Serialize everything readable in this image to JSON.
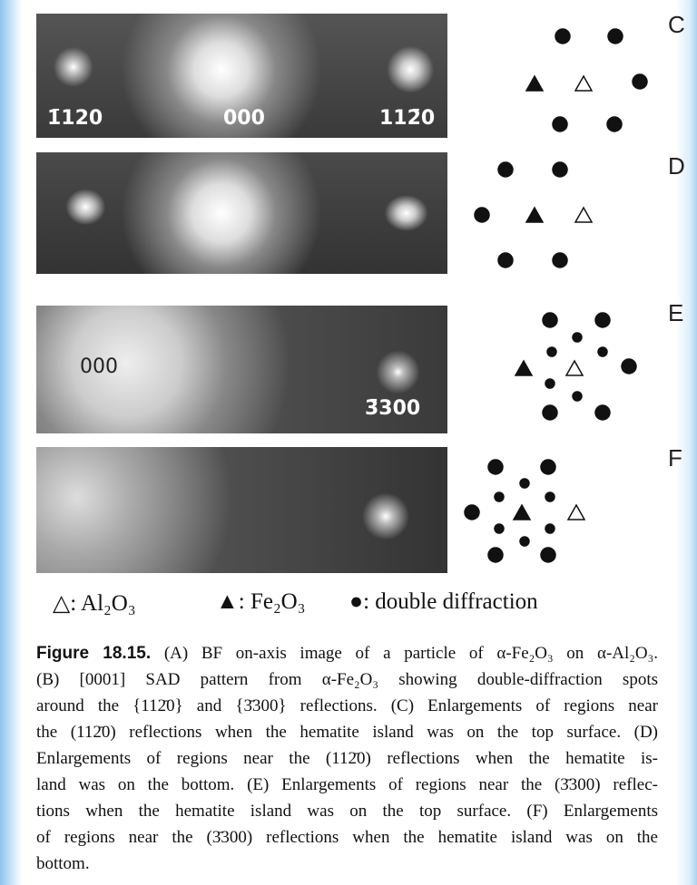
{
  "panels": [
    {
      "letter": "C",
      "labels": [
        "1̄120",
        "000",
        "112̄0"
      ]
    },
    {
      "letter": "D",
      "labels": []
    },
    {
      "letter": "E",
      "labels": [
        "000",
        "3̄300"
      ]
    },
    {
      "letter": "F",
      "labels": []
    }
  ],
  "legend": [
    "△: Al₂O₃",
    "▲: Fe₂O₃",
    "●: double diffraction"
  ],
  "caption": {
    "heading": "Figure 18.15.",
    "lines": [
      "(A) BF on-axis image of a particle of α-Fe₂O₃ on α-Al₂O₃.",
      "(B) [0001] SAD pattern from α-Fe₂O₃ showing double-diffraction spots",
      "around the {112̄0} and {3̄300} reflections. (C) Enlargements of regions near",
      "the (112̄0) reflections when the hematite island was on the top surface. (D)",
      "Enlargements of regions near the (112̄0) reflections when the hematite is-",
      "land was on the bottom. (E) Enlargements of regions near the (3̄300) reflec-",
      "tions when the hematite island was on the top surface. (F) Enlargements",
      "of regions near the (3̄300) reflections when the hematite island was on the",
      "bottom."
    ]
  }
}
